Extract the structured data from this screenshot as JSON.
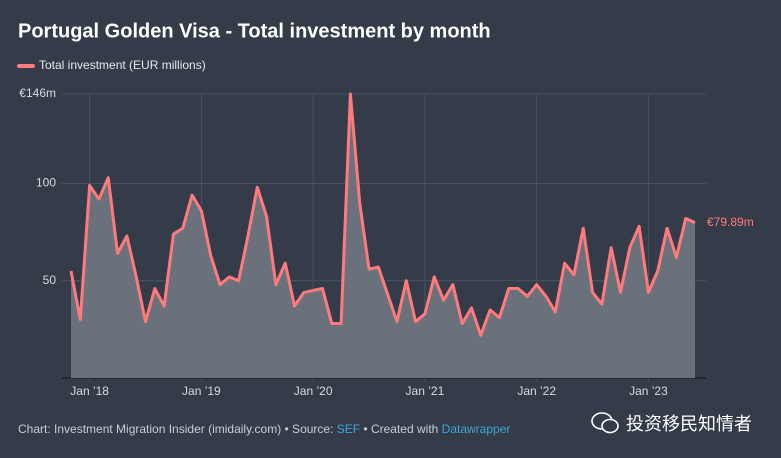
{
  "chart_data": {
    "type": "area_line",
    "title": "Portugal Golden Visa - Total investment by month",
    "series": [
      {
        "name": "Total investment (EUR millions)",
        "color": "#ff7a7d",
        "values": [
          55,
          30,
          99,
          92,
          103,
          64,
          73,
          52,
          29,
          46,
          37,
          74,
          77,
          94,
          86,
          63,
          48,
          52,
          50,
          73,
          98,
          83,
          48,
          59,
          37,
          44,
          45,
          46,
          28,
          28,
          146,
          90,
          56,
          57,
          43,
          29,
          50,
          29,
          33,
          52,
          40,
          48,
          28,
          36,
          22,
          35,
          31,
          46,
          46,
          42,
          48,
          42,
          34,
          59,
          53,
          77,
          44,
          38,
          67,
          44,
          67,
          78,
          44,
          55,
          77,
          62,
          82,
          79.89
        ],
        "value_labels": [
          null,
          null,
          null,
          null,
          null,
          null,
          null,
          null,
          null,
          null,
          null,
          null,
          null,
          null,
          null,
          null,
          null,
          null,
          null,
          null,
          null,
          null,
          null,
          null,
          null,
          null,
          null,
          null,
          null,
          null,
          null,
          null,
          null,
          null,
          null,
          null,
          null,
          null,
          null,
          null,
          null,
          null,
          null,
          null,
          null,
          null,
          null,
          null,
          null,
          null,
          null,
          null,
          null,
          null,
          null,
          null,
          null,
          null,
          null,
          null,
          null,
          null,
          null,
          null,
          null,
          null,
          null,
          "€79.89m"
        ]
      }
    ],
    "categories": [
      null,
      null,
      "Jan ’18",
      null,
      null,
      null,
      null,
      null,
      null,
      null,
      null,
      null,
      null,
      null,
      "Jan ’19",
      null,
      null,
      null,
      null,
      null,
      null,
      null,
      null,
      null,
      null,
      null,
      "Jan ’20",
      null,
      null,
      null,
      null,
      null,
      null,
      null,
      null,
      null,
      null,
      null,
      "Jan ’21",
      null,
      null,
      null,
      null,
      null,
      null,
      null,
      null,
      null,
      null,
      null,
      "Jan ’22",
      null,
      null,
      null,
      null,
      null,
      null,
      null,
      null,
      null,
      null,
      null,
      "Jan ’23",
      null,
      null,
      null,
      null,
      null
    ],
    "area_color": "#6a717b",
    "ylim": [
      0,
      146
    ],
    "yticks": [
      50,
      100,
      {
        "value": 146,
        "label": "€146m"
      }
    ],
    "grid": true,
    "footer": {
      "prefix": "Chart: Investment Migration Insider (imidaily.com) • Source: ",
      "source": "SEF",
      "middle": " • Created with ",
      "tool": "Datawrapper"
    },
    "watermark": "投资移民知情者"
  }
}
